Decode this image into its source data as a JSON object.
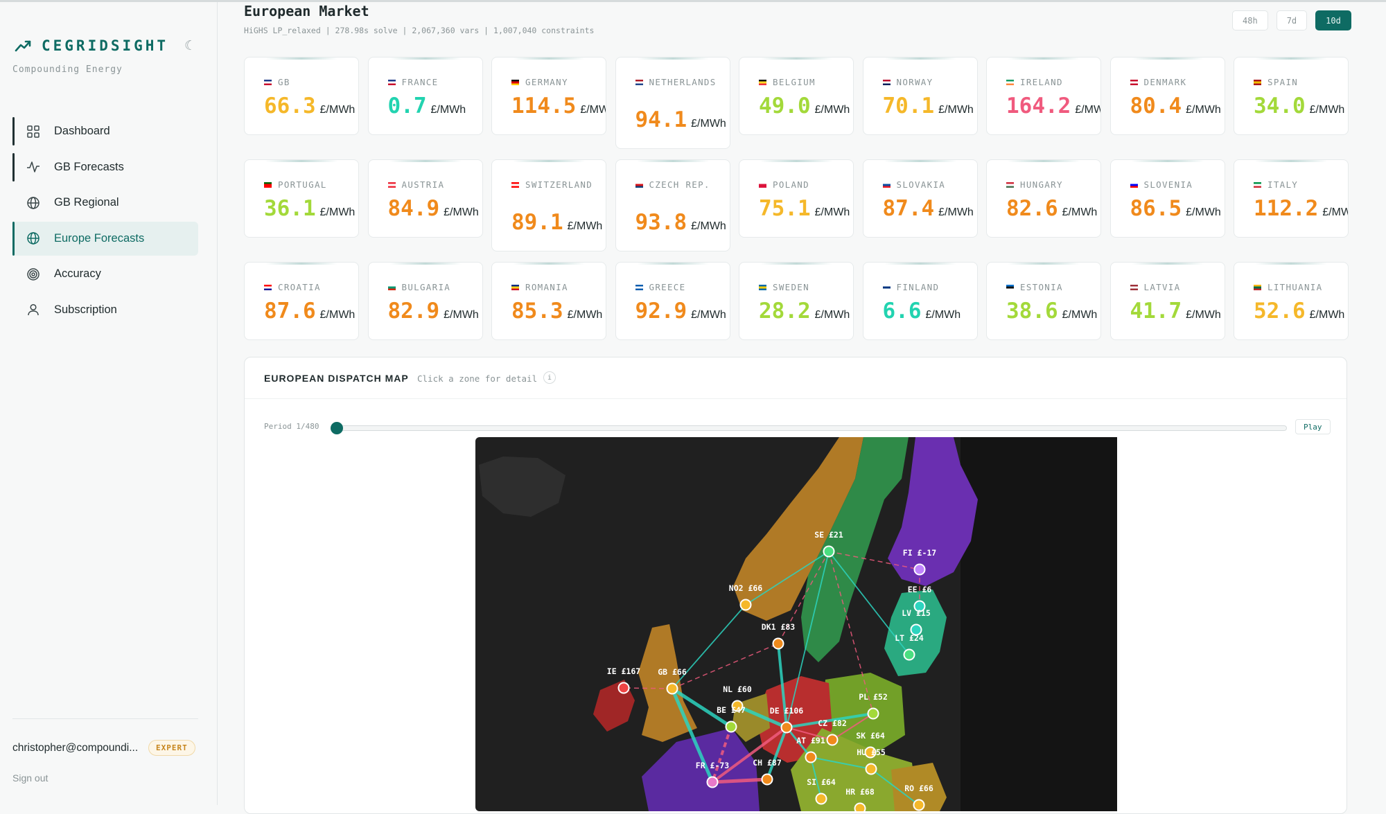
{
  "app": {
    "brand": "CEGRIDSIGHT",
    "tagline": "Compounding Energy",
    "theme_toggle": "☾"
  },
  "nav": [
    {
      "label": "Dashboard",
      "icon": "grid-icon"
    },
    {
      "label": "GB Forecasts",
      "icon": "activity-icon"
    },
    {
      "label": "GB Regional",
      "icon": "globe-icon"
    },
    {
      "label": "Europe Forecasts",
      "icon": "globe-icon",
      "active": true
    },
    {
      "label": "Accuracy",
      "icon": "target-icon"
    },
    {
      "label": "Subscription",
      "icon": "user-icon"
    }
  ],
  "user": {
    "email": "christopher@compoundi...",
    "tier": "EXPERT",
    "signout": "Sign out"
  },
  "header": {
    "title": "European Market",
    "subtitle": "HiGHS LP_relaxed | 278.98s solve | 2,067,360 vars | 1,007,040 constraints",
    "ranges": [
      "48h",
      "7d",
      "10d"
    ],
    "active_range": "10d"
  },
  "unit": "£/MWh",
  "markets": [
    {
      "name": "GB",
      "price": "66.3",
      "color": "#f5b82a",
      "flag": [
        "#1e3a8a",
        "#ffffff",
        "#c8102e"
      ]
    },
    {
      "name": "FRANCE",
      "price": "0.7",
      "color": "#22d3b0",
      "flag": [
        "#1e3a8a",
        "#ffffff",
        "#c8102e"
      ]
    },
    {
      "name": "GERMANY",
      "price": "114.5",
      "color": "#f08a1c",
      "flag": [
        "#111111",
        "#dd0000",
        "#ffce00"
      ]
    },
    {
      "name": "NETHERLANDS",
      "price": "94.1",
      "color": "#f08a1c",
      "flag": [
        "#ae1c28",
        "#ffffff",
        "#21468b"
      ]
    },
    {
      "name": "BELGIUM",
      "price": "49.0",
      "color": "#a3d93a",
      "flag": [
        "#111111",
        "#fdda24",
        "#ef3340"
      ]
    },
    {
      "name": "NORWAY",
      "price": "70.1",
      "color": "#f5b82a",
      "flag": [
        "#ba0c2f",
        "#ffffff",
        "#00205b"
      ]
    },
    {
      "name": "IRELAND",
      "price": "164.2",
      "color": "#f05a7e",
      "flag": [
        "#169b62",
        "#ffffff",
        "#ff883e"
      ]
    },
    {
      "name": "DENMARK",
      "price": "80.4",
      "color": "#f08a1c",
      "flag": [
        "#c8102e",
        "#ffffff",
        "#c8102e"
      ]
    },
    {
      "name": "SPAIN",
      "price": "34.0",
      "color": "#a3d93a",
      "flag": [
        "#aa151b",
        "#f1bf00",
        "#aa151b"
      ]
    },
    {
      "name": "PORTUGAL",
      "price": "36.1",
      "color": "#a3d93a",
      "flag": [
        "#006600",
        "#ff0000",
        "#ff0000"
      ]
    },
    {
      "name": "AUSTRIA",
      "price": "84.9",
      "color": "#f08a1c",
      "flag": [
        "#ed2939",
        "#ffffff",
        "#ed2939"
      ]
    },
    {
      "name": "SWITZERLAND",
      "price": "89.1",
      "color": "#f08a1c",
      "flag": [
        "#ff0000",
        "#ffffff",
        "#ff0000"
      ]
    },
    {
      "name": "CZECH REP.",
      "price": "93.8",
      "color": "#f08a1c",
      "flag": [
        "#ffffff",
        "#d7141a",
        "#11457e"
      ]
    },
    {
      "name": "POLAND",
      "price": "75.1",
      "color": "#f5b82a",
      "flag": [
        "#ffffff",
        "#dc143c",
        "#dc143c"
      ]
    },
    {
      "name": "SLOVAKIA",
      "price": "87.4",
      "color": "#f08a1c",
      "flag": [
        "#ffffff",
        "#0b4ea2",
        "#ee1c25"
      ]
    },
    {
      "name": "HUNGARY",
      "price": "82.6",
      "color": "#f08a1c",
      "flag": [
        "#ce2939",
        "#ffffff",
        "#477050"
      ]
    },
    {
      "name": "SLOVENIA",
      "price": "86.5",
      "color": "#f08a1c",
      "flag": [
        "#ffffff",
        "#0000ff",
        "#ff0000"
      ]
    },
    {
      "name": "ITALY",
      "price": "112.2",
      "color": "#f08a1c",
      "flag": [
        "#009246",
        "#ffffff",
        "#ce2b37"
      ]
    },
    {
      "name": "CROATIA",
      "price": "87.6",
      "color": "#f08a1c",
      "flag": [
        "#ff0000",
        "#ffffff",
        "#171796"
      ]
    },
    {
      "name": "BULGARIA",
      "price": "82.9",
      "color": "#f08a1c",
      "flag": [
        "#ffffff",
        "#00966e",
        "#d62612"
      ]
    },
    {
      "name": "ROMANIA",
      "price": "85.3",
      "color": "#f08a1c",
      "flag": [
        "#002b7f",
        "#fcd116",
        "#ce1126"
      ]
    },
    {
      "name": "GREECE",
      "price": "92.9",
      "color": "#f08a1c",
      "flag": [
        "#0d5eaf",
        "#ffffff",
        "#0d5eaf"
      ]
    },
    {
      "name": "SWEDEN",
      "price": "28.2",
      "color": "#a3d93a",
      "flag": [
        "#006aa7",
        "#fecc00",
        "#006aa7"
      ]
    },
    {
      "name": "FINLAND",
      "price": "6.6",
      "color": "#22d3b0",
      "flag": [
        "#ffffff",
        "#003580",
        "#ffffff"
      ]
    },
    {
      "name": "ESTONIA",
      "price": "38.6",
      "color": "#a3d93a",
      "flag": [
        "#0072ce",
        "#111111",
        "#ffffff"
      ]
    },
    {
      "name": "LATVIA",
      "price": "41.7",
      "color": "#a3d93a",
      "flag": [
        "#9e3039",
        "#ffffff",
        "#9e3039"
      ]
    },
    {
      "name": "LITHUANIA",
      "price": "52.6",
      "color": "#f5b82a",
      "flag": [
        "#fdb913",
        "#006a44",
        "#c1272d"
      ]
    }
  ],
  "map": {
    "title": "EUROPEAN DISPATCH MAP",
    "hint": "Click a zone for detail",
    "info": "i",
    "period": "Period 1/480",
    "play": "Play",
    "nodes": [
      {
        "label": "SE £21",
        "color": "#4ade80"
      },
      {
        "label": "FI £-17",
        "color": "#c084fc"
      },
      {
        "label": "EE £6",
        "color": "#2dd4bf"
      },
      {
        "label": "NO2 £66",
        "color": "#f5b82a"
      },
      {
        "label": "LV £15",
        "color": "#2dd4bf"
      },
      {
        "label": "LT £24",
        "color": "#4ade80"
      },
      {
        "label": "DK1 £83",
        "color": "#f08a1c"
      },
      {
        "label": "IE £167",
        "color": "#ef4444"
      },
      {
        "label": "GB £66",
        "color": "#f5b82a"
      },
      {
        "label": "NL £60",
        "color": "#f5b82a"
      },
      {
        "label": "PL £52",
        "color": "#a3d93a"
      },
      {
        "label": "BE £47",
        "color": "#a3d93a"
      },
      {
        "label": "DE £106",
        "color": "#f08a1c"
      },
      {
        "label": "CZ £82",
        "color": "#f08a1c"
      },
      {
        "label": "SK £64",
        "color": "#f5b82a"
      },
      {
        "label": "AT £91",
        "color": "#f08a1c"
      },
      {
        "label": "HU £55",
        "color": "#f5b82a"
      },
      {
        "label": "FR £-73",
        "color": "#e879c9"
      },
      {
        "label": "CH £87",
        "color": "#f08a1c"
      },
      {
        "label": "SI £64",
        "color": "#f5b82a"
      },
      {
        "label": "RO £66",
        "color": "#f5b82a"
      },
      {
        "label": "HR £68",
        "color": "#f5b82a"
      }
    ]
  }
}
